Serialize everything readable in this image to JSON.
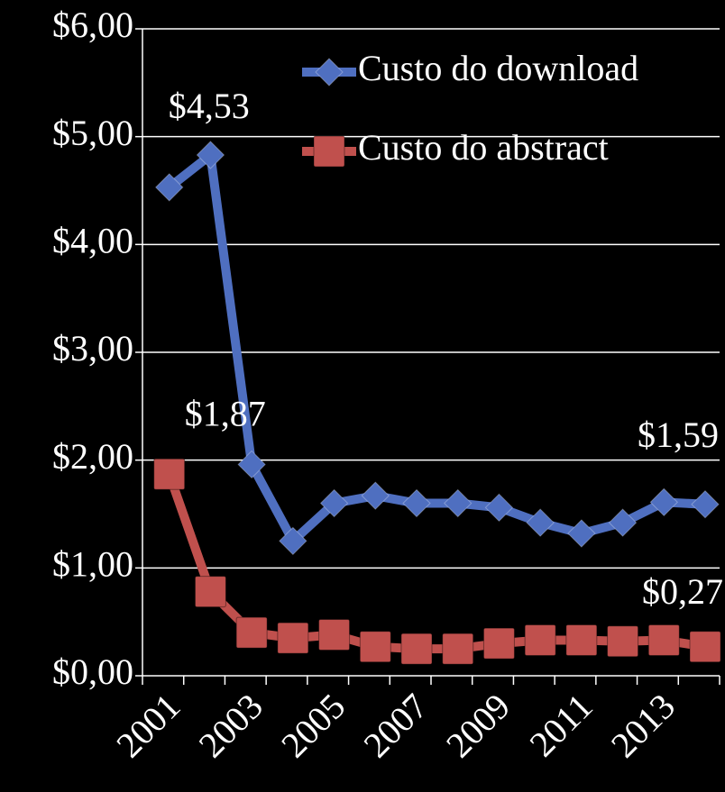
{
  "chart_data": {
    "type": "line",
    "categories": [
      "2001",
      null,
      "2003",
      null,
      "2005",
      null,
      "2007",
      null,
      "2009",
      null,
      "2011",
      null,
      "2013",
      null
    ],
    "series": [
      {
        "name": "Custo do download",
        "color": "#4f6fc0",
        "marker": "diamond",
        "values": [
          4.53,
          4.83,
          1.96,
          1.25,
          1.6,
          1.67,
          1.6,
          1.6,
          1.56,
          1.42,
          1.32,
          1.42,
          1.61,
          1.59
        ],
        "value_labels": [
          "$4,53",
          null,
          null,
          null,
          null,
          null,
          null,
          null,
          null,
          null,
          null,
          null,
          null,
          "$1,59"
        ]
      },
      {
        "name": "Custo do abstract",
        "color": "#c0504d",
        "marker": "square",
        "values": [
          1.87,
          0.78,
          0.4,
          0.35,
          0.38,
          0.27,
          0.25,
          0.25,
          0.3,
          0.33,
          0.33,
          0.32,
          0.33,
          0.27
        ],
        "value_labels": [
          "$1,87",
          null,
          null,
          null,
          null,
          null,
          null,
          null,
          null,
          null,
          null,
          null,
          null,
          "$0,27"
        ]
      }
    ],
    "ylim": [
      0,
      6
    ],
    "yticks": [
      {
        "value": 0,
        "label": "$0,00"
      },
      {
        "value": 1,
        "label": "$1,00"
      },
      {
        "value": 2,
        "label": "$2,00"
      },
      {
        "value": 3,
        "label": "$3,00"
      },
      {
        "value": 4,
        "label": "$4,00"
      },
      {
        "value": 5,
        "label": "$5,00"
      },
      {
        "value": 6,
        "label": "$6,00"
      }
    ],
    "grid": true,
    "legend": "top-right"
  }
}
